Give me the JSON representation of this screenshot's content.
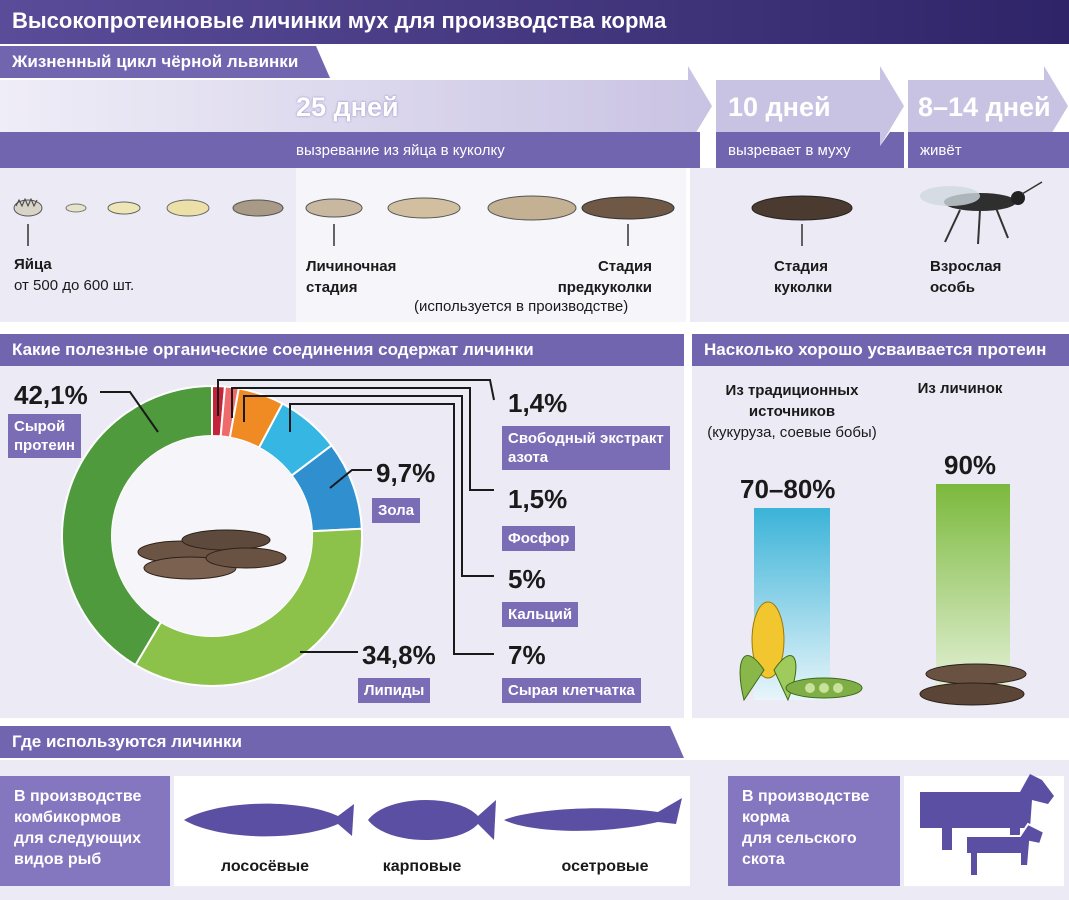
{
  "title": "Высокопротеиновые личинки мух для производства корма",
  "lifecycle": {
    "header": "Жизненный цикл чёрной львинки",
    "phases": [
      {
        "days": "25 дней",
        "caption": "вызревание из яйца в куколку"
      },
      {
        "days": "10 дней",
        "caption": "вызревает в муху"
      },
      {
        "days": "8–14 дней",
        "caption": "живёт"
      }
    ],
    "stages": {
      "eggs_title": "Яйца",
      "eggs_sub": "от 500 до 600 шт.",
      "larva_title": "Личиночная\nстадия",
      "prepupa_title": "Стадия\nпредкуколки",
      "prepupa_sub": "(используется в производстве)",
      "pupa_title": "Стадия\nкуколки",
      "adult_title": "Взрослая\nособь"
    }
  },
  "composition": {
    "header": "Какие полезные органические соединения содержат личинки",
    "items": [
      {
        "pct": "42,1%",
        "label": "Сырой\nпротеин",
        "value": 42.1,
        "color": "#4f9a3c"
      },
      {
        "pct": "34,8%",
        "label": "Липиды",
        "value": 34.8,
        "color": "#8cc24a"
      },
      {
        "pct": "9,7%",
        "label": "Зола",
        "value": 9.7,
        "color": "#2f8fcf"
      },
      {
        "pct": "7%",
        "label": "Сырая клетчатка",
        "value": 7,
        "color": "#36b6e3"
      },
      {
        "pct": "5%",
        "label": "Кальций",
        "value": 5,
        "color": "#f08a22"
      },
      {
        "pct": "1,5%",
        "label": "Фосфор",
        "value": 1.5,
        "color": "#ef6b6b"
      },
      {
        "pct": "1,4%",
        "label": "Свободный экстракт\nазота",
        "value": 1.4,
        "color": "#c4243a"
      }
    ]
  },
  "protein": {
    "header": "Насколько хорошо усваивается протеин",
    "traditional_label": "Из традиционных\nисточников",
    "traditional_sub": "(кукуруза, соевые бобы)",
    "traditional_value": "70–80%",
    "larvae_label": "Из личинок",
    "larvae_value": "90%",
    "traditional_level": 0.8,
    "larvae_level": 0.9
  },
  "usage": {
    "header": "Где используются личинки",
    "fish_box": "В производстве\nкомбикормов\nдля следующих\nвидов рыб",
    "fish": [
      "лососёвые",
      "карповые",
      "осетровые"
    ],
    "cattle_box": "В производстве\nкорма\nдля сельского\nскота"
  },
  "colors": {
    "accent": "#7265b0",
    "dark": "#3b2f78",
    "bg": "#eceaf4"
  }
}
